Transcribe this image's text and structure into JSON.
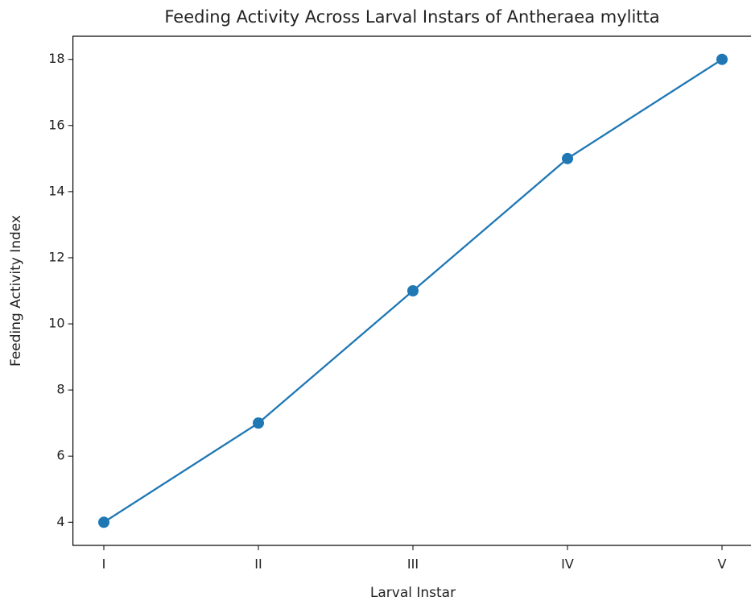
{
  "chart_data": {
    "type": "line",
    "title": "Feeding Activity Across Larval Instars of Antheraea mylitta",
    "x_label": "Larval Instar",
    "y_label": "Feeding Activity Index",
    "categories": [
      "I",
      "II",
      "III",
      "IV",
      "V"
    ],
    "values": [
      4,
      7,
      11,
      15,
      18
    ],
    "color": "#1f77b4",
    "markers": true,
    "ylim": [
      3.3,
      18.7
    ],
    "yticks": [
      4,
      6,
      8,
      10,
      12,
      14,
      16,
      18
    ],
    "grid": false
  }
}
